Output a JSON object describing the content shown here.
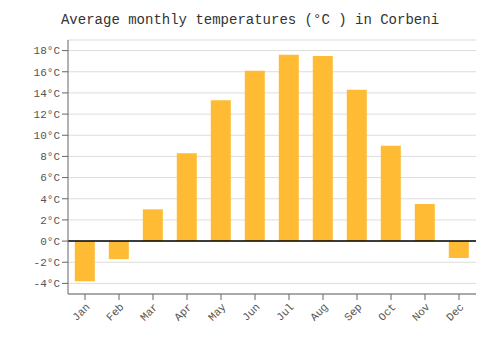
{
  "chart_data": {
    "type": "bar",
    "title": "Average monthly temperatures (°C ) in Corbeni",
    "categories": [
      "Jan",
      "Feb",
      "Mar",
      "Apr",
      "May",
      "Jun",
      "Jul",
      "Aug",
      "Sep",
      "Oct",
      "Nov",
      "Dec"
    ],
    "values": [
      -3.8,
      -1.7,
      3.0,
      8.3,
      13.3,
      16.1,
      17.6,
      17.5,
      14.3,
      9.0,
      3.5,
      -1.6
    ],
    "color": "#FFBB33",
    "ylim": [
      -5,
      19
    ],
    "yticks": [
      {
        "value": -4,
        "label": "-4°C"
      },
      {
        "value": -2,
        "label": "-2°C"
      },
      {
        "value": 0,
        "label": "0°C"
      },
      {
        "value": 2,
        "label": "2°C"
      },
      {
        "value": 4,
        "label": "4°C"
      },
      {
        "value": 6,
        "label": "6°C"
      },
      {
        "value": 8,
        "label": "8°C"
      },
      {
        "value": 10,
        "label": "10°C"
      },
      {
        "value": 12,
        "label": "12°C"
      },
      {
        "value": 14,
        "label": "14°C"
      },
      {
        "value": 16,
        "label": "16°C"
      },
      {
        "value": 18,
        "label": "18°C"
      }
    ],
    "grid": true
  }
}
